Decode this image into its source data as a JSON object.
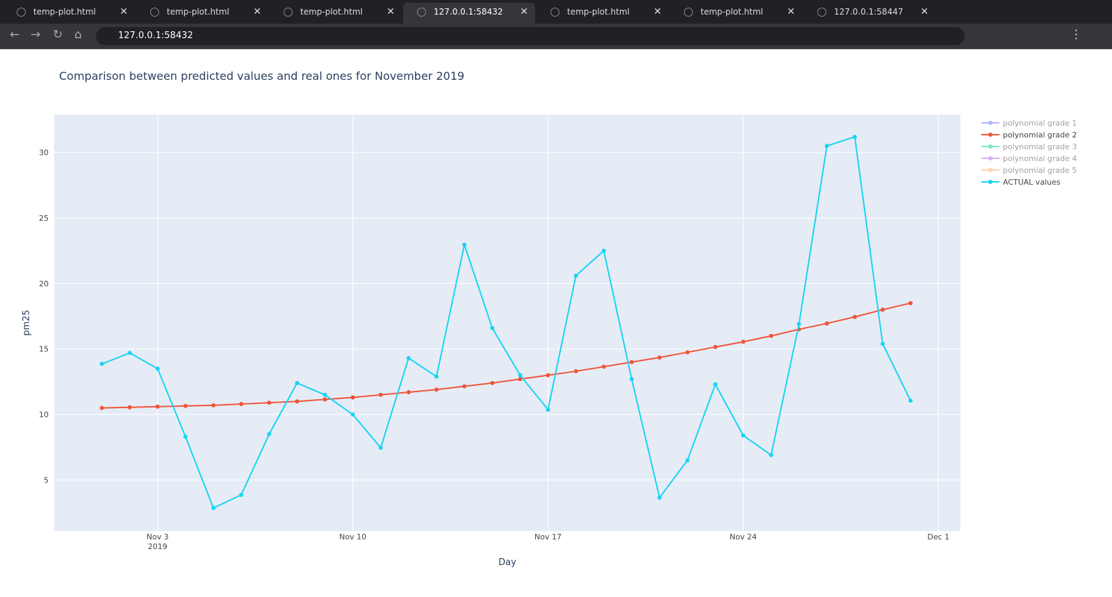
{
  "browser": {
    "tabs": [
      "temp-plot.html",
      "temp-plot.html",
      "temp-plot.html",
      "127.0.0.1:58432",
      "temp-plot.html",
      "temp-plot.html",
      "127.0.0.1:58447"
    ],
    "active_tab": 3,
    "address": "127.0.0.1:58432"
  },
  "chart_data": {
    "type": "line",
    "title": "Comparison between predicted values and real ones for November 2019",
    "xlabel": "Day",
    "ylabel": "pm25",
    "x": [
      "2019-11-01",
      "2019-11-02",
      "2019-11-03",
      "2019-11-04",
      "2019-11-05",
      "2019-11-06",
      "2019-11-07",
      "2019-11-08",
      "2019-11-09",
      "2019-11-10",
      "2019-11-11",
      "2019-11-12",
      "2019-11-13",
      "2019-11-14",
      "2019-11-15",
      "2019-11-16",
      "2019-11-17",
      "2019-11-18",
      "2019-11-19",
      "2019-11-20",
      "2019-11-21",
      "2019-11-22",
      "2019-11-23",
      "2019-11-24",
      "2019-11-25",
      "2019-11-26",
      "2019-11-27",
      "2019-11-28",
      "2019-11-29",
      "2019-11-30"
    ],
    "xlim": [
      "2019-10-30T07:00",
      "2019-12-01T19:00"
    ],
    "xticks": [
      {
        "value": "2019-11-03",
        "label": "Nov 3"
      },
      {
        "value": "2019-11-10",
        "label": "Nov 10"
      },
      {
        "value": "2019-11-17",
        "label": "Nov 17"
      },
      {
        "value": "2019-11-24",
        "label": "Nov 24"
      },
      {
        "value": "2019-12-01",
        "label": "Dec 1"
      }
    ],
    "xtick_year": "2019",
    "ylim": [
      1.1,
      32.9
    ],
    "yticks": [
      5,
      10,
      15,
      20,
      25,
      30
    ],
    "grid": true,
    "legend": "right",
    "series": [
      {
        "name": "polynomial grade 1",
        "color": "#636efa",
        "visible": "legendonly"
      },
      {
        "name": "polynomial grade 2",
        "color": "#ef553b",
        "values": [
          10.5,
          10.55,
          10.6,
          10.65,
          10.7,
          10.8,
          10.9,
          11.0,
          11.15,
          11.3,
          11.5,
          11.7,
          11.9,
          12.15,
          12.4,
          12.7,
          13.0,
          13.3,
          13.65,
          14.0,
          14.35,
          14.75,
          15.15,
          15.55,
          16.0,
          16.5,
          16.95,
          17.45,
          18.0,
          18.5
        ]
      },
      {
        "name": "polynomial grade 3",
        "color": "#00cc96",
        "visible": "legendonly"
      },
      {
        "name": "polynomial grade 4",
        "color": "#ab63fa",
        "visible": "legendonly"
      },
      {
        "name": "polynomial grade 5",
        "color": "#ffa15a",
        "visible": "legendonly"
      },
      {
        "name": "ACTUAL values",
        "color": "#19d3f3",
        "values": [
          13.86,
          14.7,
          13.5,
          8.3,
          2.86,
          3.86,
          8.5,
          12.4,
          11.5,
          10.0,
          7.46,
          14.3,
          12.9,
          22.96,
          16.6,
          13.0,
          10.37,
          20.6,
          22.5,
          12.7,
          3.65,
          6.5,
          12.3,
          8.4,
          6.9,
          16.9,
          30.5,
          31.2,
          15.4,
          11.06
        ]
      }
    ]
  }
}
